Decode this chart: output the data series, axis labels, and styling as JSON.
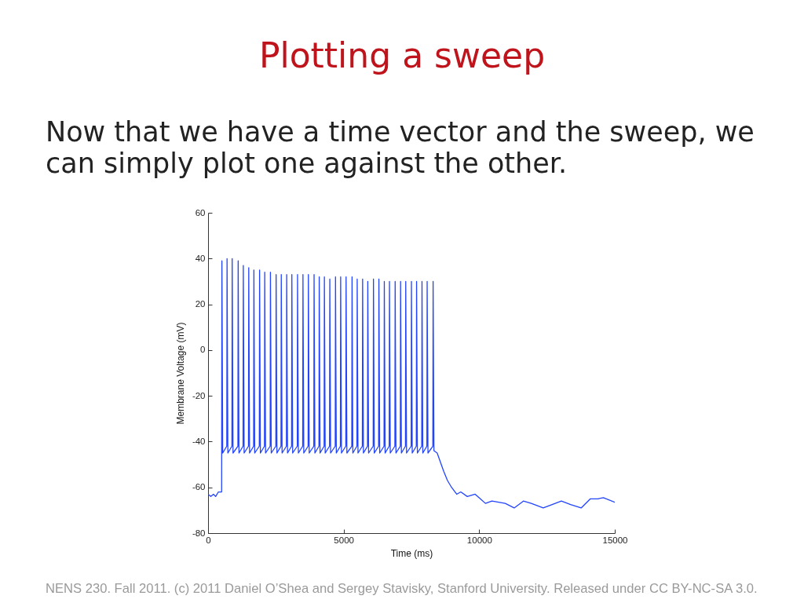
{
  "chart_data": {
    "type": "line",
    "title": "Plotting a sweep",
    "subtitle": "Now that we have a time vector and the sweep, we can simply plot one against the other.",
    "xlabel": "Time (ms)",
    "ylabel": "Membrane Voltage (mV)",
    "annotations": [
      "NENS 230. Fall 2011. (c) 2011 Daniel O’Shea and Sergey Stavisky, Stanford University. Released under CC BY-NC-SA 3.0."
    ],
    "x": [
      0,
      100,
      200,
      280,
      380,
      500,
      510,
      540,
      690,
      700,
      730,
      880,
      890,
      920,
      1100,
      1110,
      1140,
      1290,
      1300,
      1330,
      1490,
      1500,
      1530,
      1680,
      1690,
      1720,
      1890,
      1900,
      1930,
      2080,
      2090,
      2120,
      2290,
      2300,
      2330,
      2500,
      2510,
      2540,
      2690,
      2700,
      2730,
      2890,
      2900,
      2930,
      3080,
      3090,
      3120,
      3290,
      3300,
      3330,
      3490,
      3500,
      3530,
      3690,
      3700,
      3730,
      3900,
      3910,
      3940,
      4090,
      4100,
      4130,
      4280,
      4290,
      4320,
      4480,
      4490,
      4520,
      4690,
      4700,
      4730,
      4880,
      4890,
      4920,
      5080,
      5090,
      5120,
      5300,
      5310,
      5340,
      5490,
      5500,
      5530,
      5690,
      5700,
      5730,
      5880,
      5890,
      5920,
      6090,
      6100,
      6130,
      6290,
      6300,
      6330,
      6490,
      6500,
      6530,
      6680,
      6690,
      6720,
      6890,
      6900,
      6930,
      7090,
      7100,
      7130,
      7280,
      7290,
      7320,
      7490,
      7500,
      7530,
      7680,
      7690,
      7720,
      7880,
      7890,
      7920,
      8070,
      8080,
      8110,
      8290,
      8300,
      8330,
      8450,
      8540,
      8690,
      8830,
      8980,
      9170,
      9320,
      9560,
      9850,
      10040,
      10230,
      10470,
      10960,
      11290,
      11630,
      11920,
      12360,
      12690,
      13030,
      13370,
      13760,
      14100,
      14380,
      14580,
      15000
    ],
    "series": [
      {
        "color": "#2244ff",
        "values": [
          -63,
          -64,
          -63,
          -64,
          -62,
          -62,
          39,
          -45,
          -42,
          40,
          -45,
          -42,
          40,
          -45,
          -42,
          39,
          -45,
          -42,
          37,
          -45,
          -42,
          36,
          -45,
          -42,
          35,
          -45,
          -42,
          35,
          -45,
          -42,
          34,
          -45,
          -42,
          34,
          -45,
          -42,
          33,
          -45,
          -42,
          33,
          -45,
          -42,
          33,
          -45,
          -42,
          33,
          -45,
          -42,
          33,
          -45,
          -42,
          33,
          -45,
          -42,
          33,
          -45,
          -42,
          33,
          -45,
          -42,
          32,
          -45,
          -42,
          32,
          -45,
          -42,
          31,
          -45,
          -42,
          32,
          -45,
          -42,
          32,
          -45,
          -42,
          32,
          -45,
          -42,
          32,
          -45,
          -42,
          31,
          -45,
          -42,
          31,
          -45,
          -42,
          30,
          -45,
          -42,
          31,
          -45,
          -42,
          31,
          -45,
          -42,
          30,
          -45,
          -42,
          30,
          -45,
          -42,
          30,
          -45,
          -42,
          30,
          -45,
          -42,
          30,
          -45,
          -42,
          30,
          -45,
          -42,
          30,
          -45,
          -42,
          30,
          -45,
          -42,
          30,
          -45,
          -42,
          30,
          -44,
          -45,
          -48,
          -53,
          -57,
          -60,
          -63,
          -62,
          -64,
          -63,
          -65,
          -67,
          -66,
          -67,
          -69,
          -66,
          -67,
          -69,
          -67.5,
          -66,
          -67.5,
          -69,
          -65,
          -65,
          -64.5,
          -66.5
        ]
      }
    ],
    "xlim": [
      0,
      15000
    ],
    "ylim": [
      -80,
      60
    ],
    "xticks": [
      0,
      5000,
      10000,
      15000
    ],
    "yticks": [
      -80,
      -60,
      -40,
      -20,
      0,
      20,
      40,
      60
    ]
  }
}
